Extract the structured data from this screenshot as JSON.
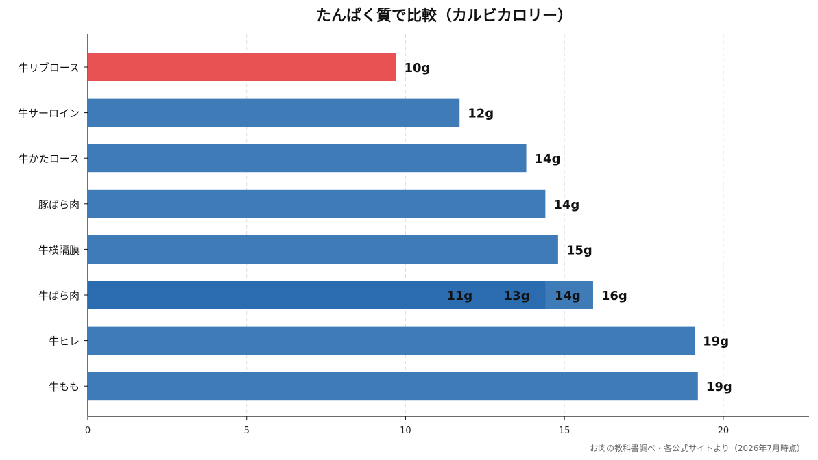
{
  "chart_data": {
    "type": "bar",
    "orientation": "horizontal",
    "title": "たんぱく質で比較（カルビカロリー）",
    "source": "お肉の教科書調べ・各公式サイトより（2026年7月時点）",
    "categories": [
      "牛リブロース",
      "牛サーロイン",
      "牛かたロース",
      "豚ばら肉",
      "牛横隔膜",
      "牛ばら肉",
      "牛ヒレ",
      "牛もも"
    ],
    "values": [
      9.7,
      11.7,
      13.8,
      14.4,
      14.8,
      15.9,
      19.1,
      19.2
    ],
    "value_labels": [
      "10g",
      "12g",
      "14g",
      "14g",
      "15g",
      "16g",
      "19g",
      "19g"
    ],
    "bar_colors": [
      "#e85253",
      "#3f7bb6",
      "#3f7bb6",
      "#3f7bb6",
      "#3f7bb6",
      "#2b6cb0",
      "#3f7bb6",
      "#3f7bb6"
    ],
    "overlay_labels": [
      {
        "category": "牛ばら肉",
        "x": 11.7,
        "label": "11g"
      },
      {
        "category": "牛ばら肉",
        "x": 13.5,
        "label": "13g"
      },
      {
        "category": "牛ばら肉",
        "x": 15.1,
        "label": "14g"
      }
    ],
    "overlay_segment": {
      "category": "牛ばら肉",
      "from": 14.4,
      "to": 15.9,
      "color": "#3f7bb6"
    },
    "xlim": [
      0,
      22.7
    ],
    "xticks": [
      0,
      5,
      10,
      15,
      20
    ],
    "grid": "x-dashed",
    "xlabel": "",
    "ylabel": ""
  }
}
